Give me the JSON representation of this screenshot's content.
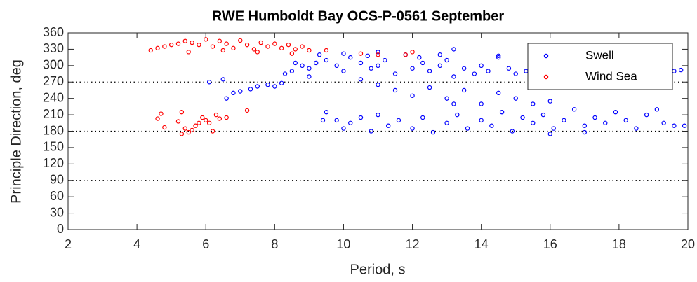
{
  "chart_data": {
    "type": "scatter",
    "title": "RWE Humboldt Bay OCS-P-0561 September",
    "xlabel": "Period, s",
    "ylabel": "Principle Direction, deg",
    "xlim": [
      2,
      20
    ],
    "xticks": [
      2,
      4,
      6,
      8,
      10,
      12,
      14,
      16,
      18,
      20
    ],
    "ylim": [
      0,
      360
    ],
    "yticks": [
      0,
      30,
      60,
      90,
      120,
      150,
      180,
      210,
      240,
      270,
      300,
      330,
      360
    ],
    "hlines": [
      90,
      180,
      270
    ],
    "legend": "northeast",
    "series": [
      {
        "name": "Swell",
        "color": "#0000ff",
        "x": [
          6.1,
          6.5,
          6.6,
          6.8,
          7.0,
          7.3,
          7.5,
          7.8,
          8.0,
          8.2,
          8.5,
          8.8,
          9.0,
          9.2,
          9.5,
          9.8,
          10.0,
          10.2,
          10.5,
          10.8,
          11.0,
          11.2,
          11.5,
          11.8,
          12.0,
          12.3,
          12.5,
          12.8,
          13.0,
          13.2,
          13.5,
          13.8,
          14.0,
          14.2,
          14.5,
          14.8,
          15.0,
          15.3,
          15.5,
          15.8,
          16.0,
          16.3,
          16.5,
          17.0,
          17.5,
          19.6,
          19.8,
          9.0,
          10.5,
          11.0,
          11.5,
          12.0,
          12.5,
          13.0,
          13.5,
          14.0,
          14.5,
          15.0,
          15.5,
          16.0,
          9.5,
          9.8,
          10.0,
          10.2,
          10.5,
          10.8,
          11.0,
          11.3,
          11.6,
          12.0,
          12.3,
          12.6,
          13.0,
          13.3,
          13.6,
          14.0,
          14.3,
          14.6,
          14.9,
          15.2,
          15.5,
          15.8,
          16.1,
          16.4,
          16.7,
          17.0,
          17.3,
          17.6,
          17.9,
          18.2,
          18.5,
          18.8,
          19.1,
          19.3,
          19.6,
          19.9,
          9.4,
          13.2,
          16.0,
          17.0,
          12.8,
          13.2,
          14.5,
          11.0,
          10.0,
          8.3,
          8.6,
          9.3,
          10.7,
          12.2
        ],
        "y": [
          270,
          275,
          240,
          250,
          253,
          257,
          262,
          265,
          262,
          268,
          290,
          300,
          295,
          305,
          310,
          300,
          290,
          315,
          305,
          295,
          300,
          310,
          285,
          320,
          295,
          305,
          290,
          300,
          310,
          280,
          295,
          285,
          300,
          290,
          315,
          295,
          285,
          290,
          275,
          280,
          270,
          285,
          265,
          280,
          290,
          290,
          292,
          280,
          275,
          265,
          255,
          245,
          260,
          240,
          255,
          230,
          250,
          240,
          230,
          235,
          215,
          200,
          185,
          195,
          205,
          180,
          210,
          190,
          200,
          185,
          205,
          178,
          195,
          210,
          185,
          200,
          190,
          215,
          180,
          205,
          195,
          210,
          185,
          200,
          220,
          190,
          205,
          195,
          215,
          200,
          185,
          210,
          220,
          195,
          190,
          190,
          200,
          230,
          175,
          178,
          320,
          330,
          318,
          325,
          322,
          285,
          305,
          320,
          318,
          315
        ]
      },
      {
        "name": "Wind Sea",
        "color": "#ff0000",
        "x": [
          4.4,
          4.6,
          4.8,
          5.0,
          5.2,
          5.4,
          5.6,
          5.8,
          6.0,
          6.2,
          6.4,
          6.6,
          6.8,
          7.0,
          7.2,
          7.4,
          7.6,
          7.8,
          8.0,
          8.2,
          8.4,
          8.6,
          8.8,
          9.0,
          5.5,
          6.5,
          7.5,
          8.5,
          9.5,
          10.5,
          11.0,
          11.8,
          12.0,
          4.6,
          4.7,
          4.8,
          5.2,
          5.3,
          5.4,
          5.5,
          5.6,
          5.7,
          5.8,
          5.9,
          6.0,
          6.1,
          6.3,
          6.4,
          6.6,
          7.2,
          6.2,
          5.3
        ],
        "y": [
          328,
          332,
          335,
          338,
          340,
          345,
          342,
          338,
          348,
          335,
          345,
          340,
          332,
          346,
          338,
          330,
          342,
          335,
          340,
          332,
          338,
          330,
          335,
          328,
          325,
          328,
          325,
          322,
          328,
          322,
          320,
          320,
          325,
          203,
          212,
          187,
          198,
          215,
          185,
          178,
          182,
          190,
          195,
          205,
          200,
          195,
          210,
          203,
          205,
          218,
          180,
          175
        ]
      }
    ]
  }
}
